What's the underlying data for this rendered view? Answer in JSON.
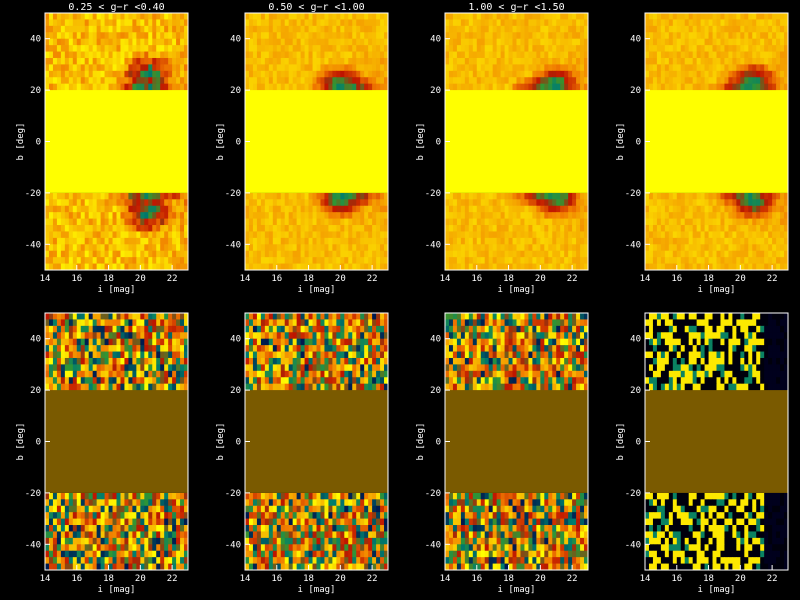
{
  "chart_data": [
    {
      "type": "heatmap",
      "title": "0.25 < g−r <0.40",
      "xlabel": "i [mag]",
      "ylabel": "b [deg]",
      "xlim": [
        14,
        23
      ],
      "ylim": [
        -50,
        50
      ],
      "xticks": [
        14,
        16,
        18,
        20,
        22
      ],
      "yticks": [
        40,
        20,
        0,
        -20,
        -40
      ],
      "masked_band_b": [
        -20,
        20
      ],
      "mask_color": "#ffff00",
      "map": "density",
      "features": [
        {
          "kind": "dark-core",
          "i": 20.5,
          "b": 26
        },
        {
          "kind": "dark-core",
          "i": 20.5,
          "b": -28
        }
      ]
    },
    {
      "type": "heatmap",
      "title": "0.50 < g−r <1.00",
      "xlabel": "i [mag]",
      "ylabel": "b [deg]",
      "xlim": [
        14,
        23
      ],
      "ylim": [
        -50,
        50
      ],
      "xticks": [
        14,
        16,
        18,
        20,
        22
      ],
      "yticks": [
        40,
        20,
        0,
        -20,
        -40
      ],
      "masked_band_b": [
        -20,
        20
      ],
      "mask_color": "#ffff00",
      "map": "density",
      "features": [
        {
          "kind": "dark-core",
          "i": 20.0,
          "b": 22
        },
        {
          "kind": "dark-core",
          "i": 20.0,
          "b": -22
        }
      ]
    },
    {
      "type": "heatmap",
      "title": "1.00 < g−r <1.50",
      "xlabel": "i [mag]",
      "ylabel": "b [deg]",
      "xlim": [
        14,
        23
      ],
      "ylim": [
        -50,
        50
      ],
      "xticks": [
        14,
        16,
        18,
        20,
        22
      ],
      "yticks": [
        40,
        20,
        0,
        -20,
        -40
      ],
      "masked_band_b": [
        -20,
        20
      ],
      "mask_color": "#ffff00",
      "map": "density",
      "features": [
        {
          "kind": "dark-core",
          "i": 21.0,
          "b": 22
        },
        {
          "kind": "dark-core",
          "i": 21.0,
          "b": -22
        }
      ]
    },
    {
      "type": "heatmap",
      "title": "",
      "xlabel": "i [mag]",
      "ylabel": "b [deg]",
      "xlim": [
        14,
        23
      ],
      "ylim": [
        -50,
        50
      ],
      "xticks": [
        14,
        16,
        18,
        20,
        22
      ],
      "yticks": [
        40,
        20,
        0,
        -20,
        -40
      ],
      "masked_band_b": [
        -20,
        20
      ],
      "mask_color": "#ffff00",
      "map": "density",
      "features": [
        {
          "kind": "dark-core",
          "i": 20.8,
          "b": 23
        },
        {
          "kind": "dark-core",
          "i": 20.8,
          "b": -23
        }
      ]
    },
    {
      "type": "heatmap",
      "title": "",
      "xlabel": "i [mag]",
      "ylabel": "b [deg]",
      "xlim": [
        14,
        23
      ],
      "ylim": [
        -50,
        50
      ],
      "xticks": [
        14,
        16,
        18,
        20,
        22
      ],
      "yticks": [
        40,
        20,
        0,
        -20,
        -40
      ],
      "masked_band_b": [
        -20,
        20
      ],
      "mask_color": "#7a5a00",
      "map": "residual-noise"
    },
    {
      "type": "heatmap",
      "title": "",
      "xlabel": "i [mag]",
      "ylabel": "b [deg]",
      "xlim": [
        14,
        23
      ],
      "ylim": [
        -50,
        50
      ],
      "xticks": [
        14,
        16,
        18,
        20,
        22
      ],
      "yticks": [
        40,
        20,
        0,
        -20,
        -40
      ],
      "masked_band_b": [
        -20,
        20
      ],
      "mask_color": "#7a5a00",
      "map": "residual-noise"
    },
    {
      "type": "heatmap",
      "title": "",
      "xlabel": "i [mag]",
      "ylabel": "b [deg]",
      "xlim": [
        14,
        23
      ],
      "ylim": [
        -50,
        50
      ],
      "xticks": [
        14,
        16,
        18,
        20,
        22
      ],
      "yticks": [
        40,
        20,
        0,
        -20,
        -40
      ],
      "masked_band_b": [
        -20,
        20
      ],
      "mask_color": "#7a5a00",
      "map": "residual-noise"
    },
    {
      "type": "heatmap",
      "title": "",
      "xlabel": "i [mag]",
      "ylabel": "b [deg]",
      "xlim": [
        14,
        23
      ],
      "ylim": [
        -50,
        50
      ],
      "xticks": [
        14,
        16,
        18,
        20,
        22
      ],
      "yticks": [
        40,
        20,
        0,
        -20,
        -40
      ],
      "masked_band_b": [
        -20,
        20
      ],
      "mask_color": "#7a5a00",
      "map": "residual-sparse"
    }
  ],
  "colors": {
    "background": "#000000",
    "axis": "#ffffff"
  }
}
